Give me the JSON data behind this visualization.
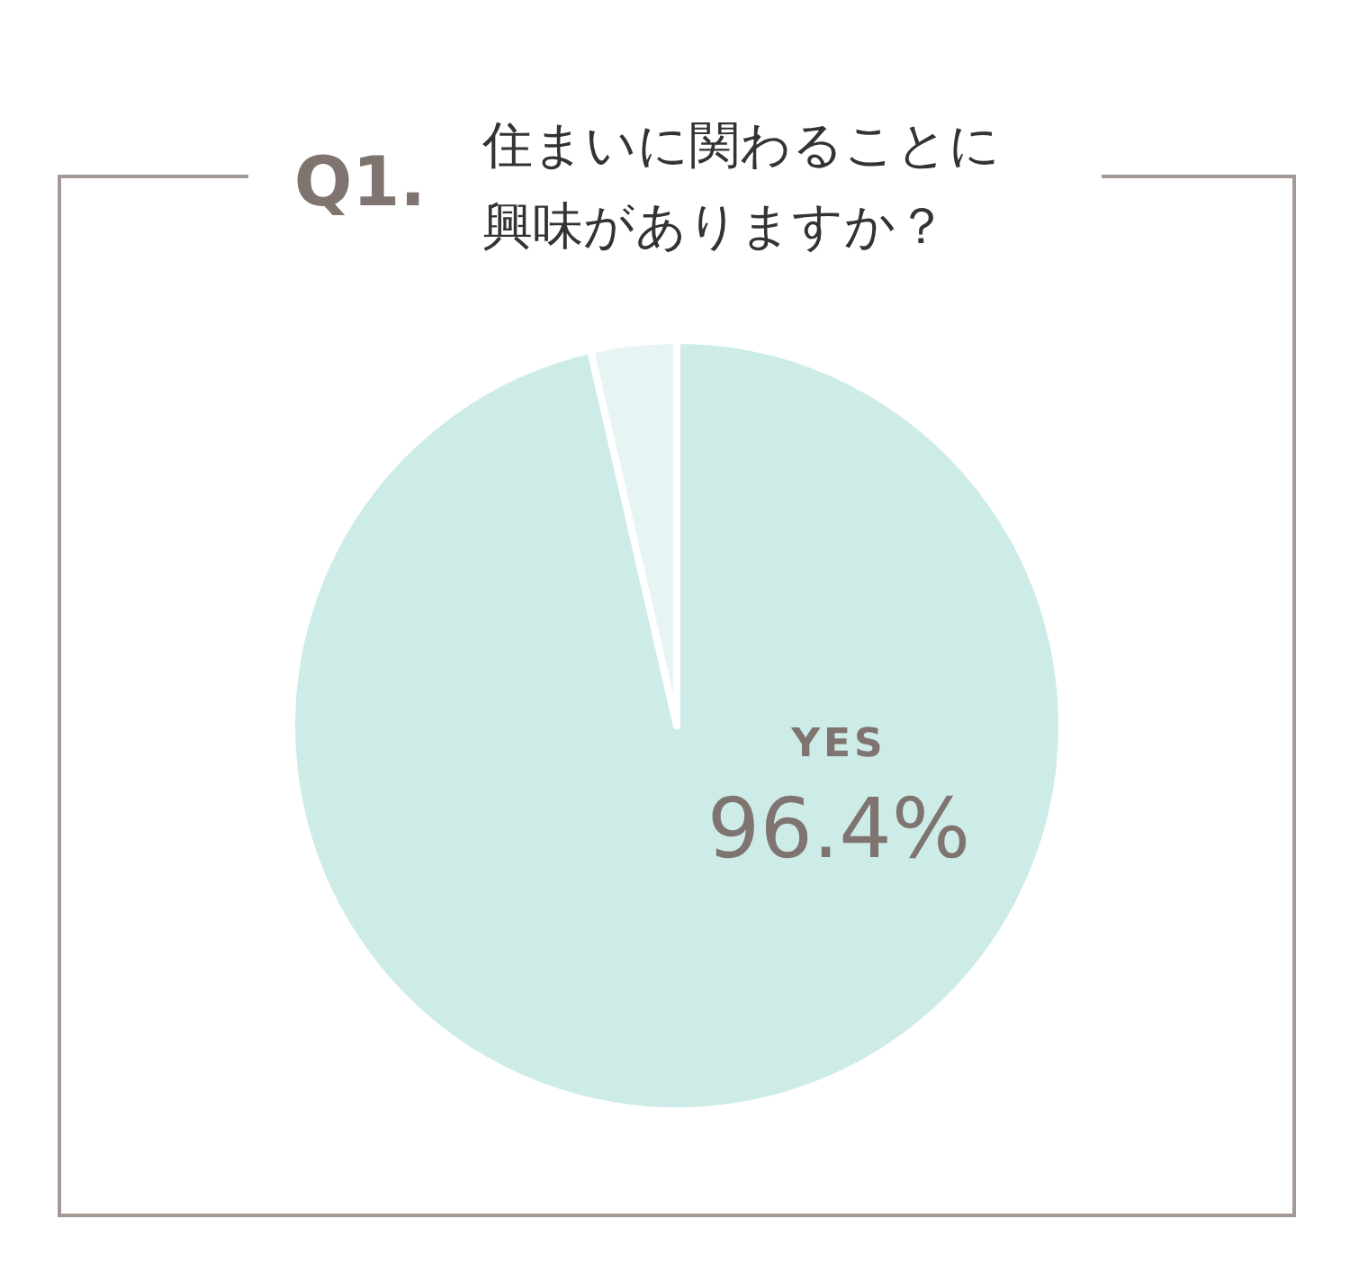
{
  "chart_data": {
    "type": "pie",
    "title": "Q1.",
    "subtitle": "住まいに関わることに興味がありますか？",
    "categories": [
      "YES",
      null
    ],
    "values": [
      96.4,
      3.6
    ],
    "colors": [
      "#cdece8",
      "#e6f5f3"
    ],
    "value_labels": [
      "96.4%",
      null
    ]
  }
}
